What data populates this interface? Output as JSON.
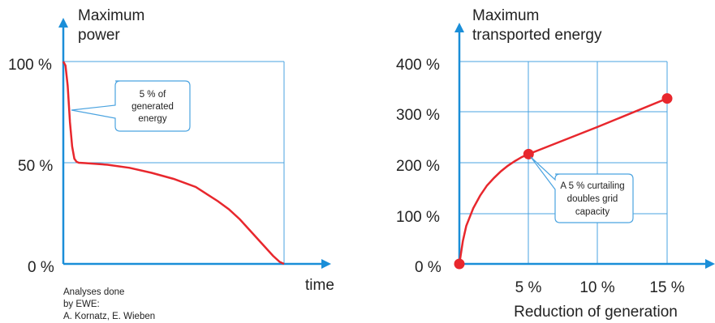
{
  "colors": {
    "axis": "#1a8ed8",
    "grid": "#4aa3e0",
    "curve": "#e8272d",
    "callout_border": "#4aa3e0",
    "text": "#222222"
  },
  "credit": {
    "line1": "Analyses done",
    "line2": "by EWE:",
    "line3": "A. Kornatz, E. Wieben"
  },
  "chart_data": [
    {
      "type": "line",
      "ylabel_line1": "Maximum",
      "ylabel_line2": "power",
      "xlabel": "time",
      "yticks": [
        "100 %",
        "50 %",
        "0 %"
      ],
      "ylim": [
        0,
        100
      ],
      "grid": true,
      "callout": {
        "line1": "5 % of",
        "line2": "generated",
        "line3": "energy"
      },
      "series": [
        {
          "x": [
            0,
            1,
            2,
            3,
            4,
            5,
            6,
            7,
            10,
            20,
            30,
            40,
            50,
            60,
            70,
            75,
            80,
            85,
            90,
            95,
            98,
            100
          ],
          "y": [
            100,
            98,
            88,
            70,
            58,
            52,
            50.5,
            50,
            49.8,
            49,
            47.5,
            45,
            42,
            38,
            31,
            27,
            22,
            16,
            10,
            4,
            1,
            0
          ]
        }
      ]
    },
    {
      "type": "line",
      "ylabel_line1": "Maximum",
      "ylabel_line2": "transported energy",
      "xlabel": "Reduction of generation",
      "xticks": [
        "5 %",
        "10 %",
        "15 %"
      ],
      "yticks": [
        "400 %",
        "300 %",
        "200 %",
        "100 %",
        "0 %"
      ],
      "xlim": [
        0,
        15
      ],
      "ylim": [
        0,
        400
      ],
      "grid": true,
      "callout": {
        "line1": "A 5 % curtailing",
        "line2": "doubles  grid",
        "line3": "capacity"
      },
      "series": [
        {
          "x": [
            0,
            0.25,
            0.5,
            1,
            1.5,
            2,
            2.5,
            3,
            3.5,
            4,
            4.5,
            5,
            10,
            15
          ],
          "y": [
            0,
            45,
            75,
            110,
            135,
            155,
            170,
            183,
            194,
            203,
            211,
            217,
            271,
            327
          ]
        }
      ],
      "markers": [
        {
          "x": 0,
          "y": 0
        },
        {
          "x": 5,
          "y": 217
        },
        {
          "x": 15,
          "y": 327
        }
      ]
    }
  ]
}
